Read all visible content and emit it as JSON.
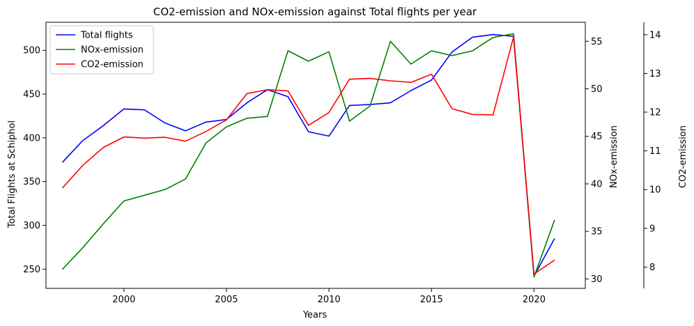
{
  "chart_data": {
    "type": "line",
    "title": "CO2-emission and NOx-emission against Total flights per year",
    "xlabel": "Years",
    "xlim": [
      1996.2,
      2022.5
    ],
    "x_ticks": [
      2000,
      2005,
      2010,
      2015,
      2020
    ],
    "x": [
      1997,
      1998,
      1999,
      2000,
      2001,
      2002,
      2003,
      2004,
      2005,
      2006,
      2007,
      2008,
      2009,
      2010,
      2011,
      2012,
      2013,
      2014,
      2015,
      2016,
      2017,
      2018,
      2019,
      2020,
      2021
    ],
    "axes": [
      {
        "id": "left",
        "label": "Total Flights at Schiphol",
        "ylim": [
          228,
          532
        ],
        "ticks": [
          250,
          300,
          350,
          400,
          450,
          500
        ]
      },
      {
        "id": "right1",
        "label": "NOx-emission",
        "ylim": [
          29,
          57
        ],
        "ticks": [
          30,
          35,
          40,
          45,
          50,
          55
        ]
      },
      {
        "id": "right2",
        "label": "CO2-emission",
        "ylim": [
          7.45,
          14.32
        ],
        "ticks": [
          8,
          9,
          10,
          11,
          12,
          13,
          14
        ]
      }
    ],
    "series": [
      {
        "name": "Total flights",
        "axis": "left",
        "color": "#0000ff",
        "values": [
          372,
          397,
          414,
          433,
          432,
          417,
          408,
          418,
          421,
          440,
          455,
          447,
          407,
          402,
          437,
          438,
          440,
          454,
          466,
          498,
          515,
          518,
          516,
          242,
          285
        ]
      },
      {
        "name": "NOx-emission",
        "axis": "right1",
        "color": "#008000",
        "values": [
          31.0,
          33.3,
          35.8,
          38.2,
          38.8,
          39.4,
          40.5,
          44.3,
          46.0,
          46.9,
          47.1,
          54.0,
          52.9,
          53.9,
          46.6,
          48.2,
          55.0,
          52.6,
          54.0,
          53.5,
          54.0,
          55.4,
          55.8,
          30.2,
          36.2
        ]
      },
      {
        "name": "CO2-emission",
        "axis": "right2",
        "color": "#ff0000",
        "values": [
          10.04,
          10.63,
          11.09,
          11.36,
          11.33,
          11.35,
          11.25,
          11.5,
          11.8,
          12.48,
          12.58,
          12.55,
          11.66,
          11.99,
          12.85,
          12.87,
          12.81,
          12.77,
          12.98,
          12.09,
          11.94,
          11.93,
          13.94,
          7.82,
          8.18
        ]
      }
    ],
    "legend_position": "top-left",
    "grid": false
  }
}
